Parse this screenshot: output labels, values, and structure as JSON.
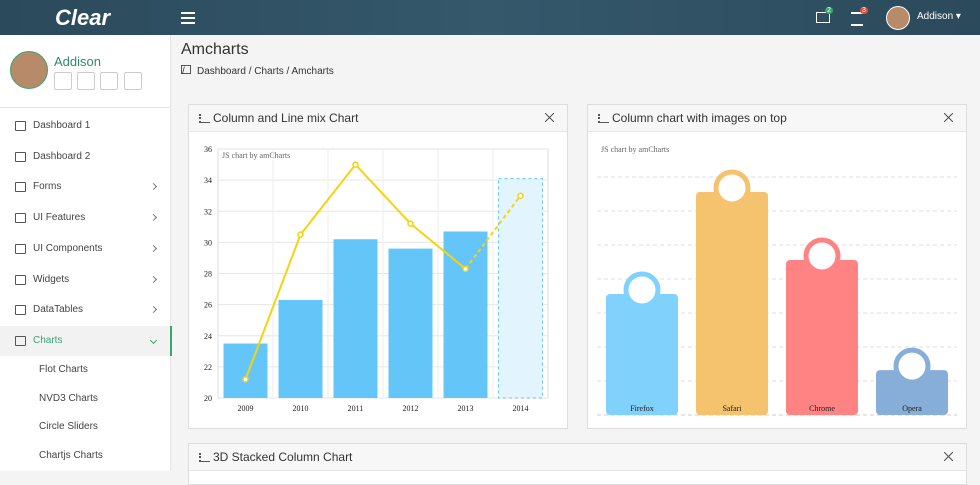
{
  "header": {
    "logo": "Clear",
    "user": "Addison",
    "mail_badge": 2,
    "tasks_badge": 3
  },
  "sidebar": {
    "user": "Addison",
    "menu": [
      {
        "label": "Dashboard 1",
        "submenu": false
      },
      {
        "label": "Dashboard 2",
        "submenu": false
      },
      {
        "label": "Forms",
        "submenu": true
      },
      {
        "label": "UI Features",
        "submenu": true
      },
      {
        "label": "UI Components",
        "submenu": true
      },
      {
        "label": "Widgets",
        "submenu": true
      },
      {
        "label": "DataTables",
        "submenu": true
      },
      {
        "label": "Charts",
        "submenu": true,
        "active": true
      }
    ],
    "submenu": [
      "Flot Charts",
      "NVD3 Charts",
      "Circle Sliders",
      "Chartjs Charts"
    ]
  },
  "page": {
    "title": "Amcharts",
    "breadcrumb": [
      "Dashboard",
      "Charts",
      "Amcharts"
    ]
  },
  "panels": [
    {
      "title": "Column and Line mix Chart",
      "chart": {
        "type": "barline",
        "watermark": "JS chart by amCharts",
        "categories": [
          "2009",
          "2010",
          "2011",
          "2012",
          "2013",
          "2014"
        ],
        "series": [
          {
            "type": "bar",
            "color": "#64c5f9",
            "values": [
              23.5,
              26.3,
              30.2,
              29.6,
              30.7,
              34.1
            ]
          },
          {
            "type": "line",
            "color": "#f5d30f",
            "values": [
              21.2,
              30.5,
              35.0,
              31.2,
              28.3,
              33.0
            ]
          }
        ],
        "dashed_last": true,
        "ylim": [
          20,
          36
        ],
        "yticks": [
          20,
          22,
          24,
          26,
          28,
          30,
          32,
          34,
          36
        ],
        "grid": true
      }
    },
    {
      "title": "Column chart with images on top",
      "chart": {
        "type": "bar",
        "watermark": "JS chart by amCharts",
        "categories": [
          "Firefox",
          "Safari",
          "Chrome",
          "Opera"
        ],
        "values": [
          3.56,
          6.56,
          4.56,
          1.32
        ],
        "colors": [
          "#80d1fb",
          "#f5c26e",
          "#ff8383",
          "#86aed8"
        ],
        "ylim": [
          0,
          8
        ],
        "gridlines": [
          1,
          2,
          3,
          4,
          5,
          6,
          7
        ]
      }
    },
    {
      "title": "3D Stacked Column Chart"
    }
  ]
}
